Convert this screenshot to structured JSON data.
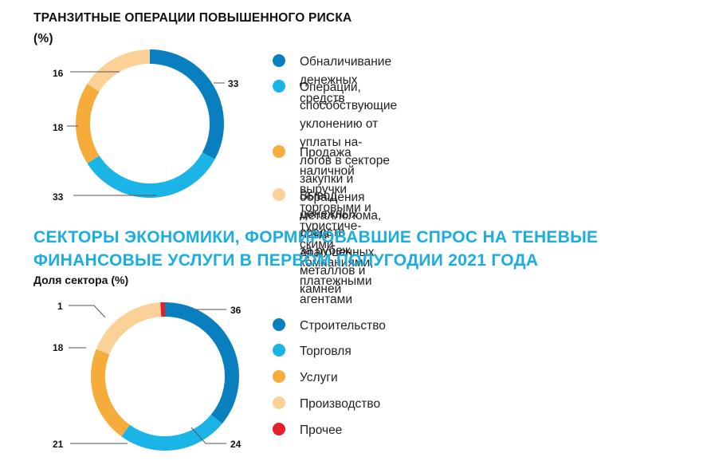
{
  "chart_data": [
    {
      "type": "pie",
      "donut": true,
      "title": "ТРАНЗИТНЫЕ ОПЕРАЦИИ ПОВЫШЕННОГО РИСКА",
      "unit_label": "(%)",
      "slices": [
        {
          "label": "Обналичивание денежных средств",
          "value": 33,
          "color": "#0a7fc0"
        },
        {
          "label": "Операции, способствующие уклонению от уплаты налогов в секторе закупки и обращения металлолома, лома драгоценных металлов и камней",
          "value": 33,
          "color": "#1ab4e6"
        },
        {
          "label": "Продажа наличной выручки торговыми и туристическими компаниями, платежными агентами",
          "value": 18,
          "color": "#f5ac3b"
        },
        {
          "label": "Вывод денежных средств за рубеж",
          "value": 16,
          "color": "#fbd197"
        }
      ],
      "legend_lines": [
        [
          "Обналичивание денежных средств"
        ],
        [
          "Операции, способствующие уклонению от уплаты на-",
          "логов в секторе закупки и обращения металлолома,",
          "лома драгоценных металлов и камней"
        ],
        [
          "Продажа наличной выручки торговыми и туристиче-",
          "скими компаниями, платежными агентами"
        ],
        [
          "Вывод денежных средств за рубеж"
        ]
      ]
    },
    {
      "type": "pie",
      "donut": true,
      "title_lines": [
        "СЕКТОРЫ ЭКОНОМИКИ, ФОРМИРОВАВШИЕ СПРОС НА ТЕНЕВЫЕ",
        "ФИНАНСОВЫЕ УСЛУГИ В ПЕРВОМ ПОЛУГОДИИ 2021 ГОДА"
      ],
      "subtitle": "Доля сектора (%)",
      "slices": [
        {
          "label": "Строительство",
          "value": 36,
          "color": "#0a7fc0"
        },
        {
          "label": "Торговля",
          "value": 24,
          "color": "#1ab4e6"
        },
        {
          "label": "Услуги",
          "value": 21,
          "color": "#f5ac3b"
        },
        {
          "label": "Производство",
          "value": 18,
          "color": "#fbd197"
        },
        {
          "label": "Прочее",
          "value": 1,
          "color": "#e3202a"
        }
      ]
    }
  ]
}
